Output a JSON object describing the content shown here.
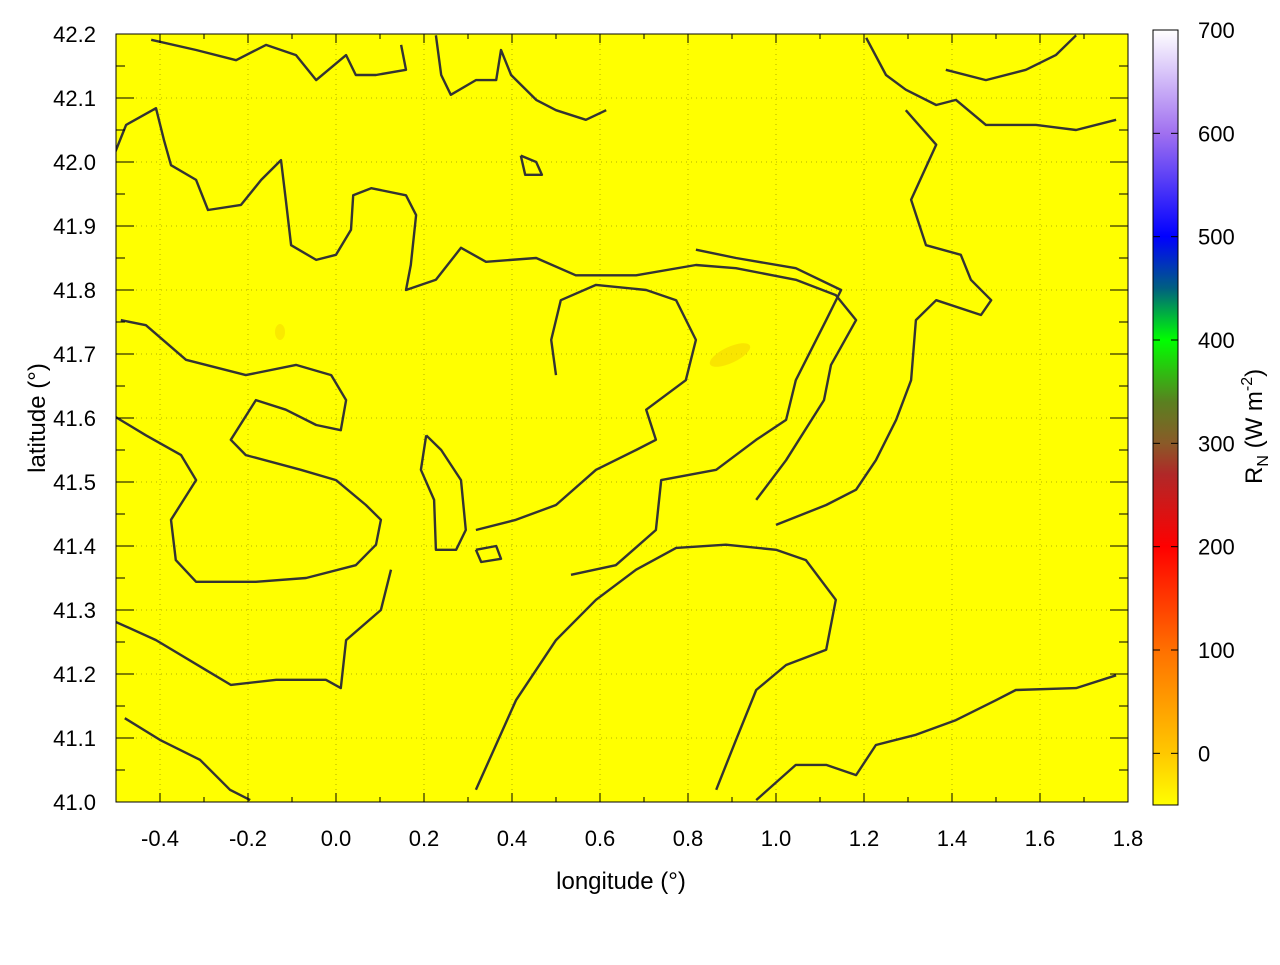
{
  "chart_data": {
    "type": "heatmap",
    "title": "",
    "xlabel": "longitude (°)",
    "ylabel": "latitude (°)",
    "xlim": [
      -0.5,
      1.8
    ],
    "ylim": [
      41.0,
      42.2
    ],
    "xticks": [
      -0.4,
      -0.2,
      0.0,
      0.2,
      0.4,
      0.6,
      0.8,
      1.0,
      1.2,
      1.4,
      1.6,
      1.8
    ],
    "xtick_labels": [
      "-0.4",
      "-0.2",
      "0.0",
      "0.2",
      "0.4",
      "0.6",
      "0.8",
      "1.0",
      "1.2",
      "1.4",
      "1.6",
      "1.8"
    ],
    "yticks": [
      41.0,
      41.1,
      41.2,
      41.3,
      41.4,
      41.5,
      41.6,
      41.7,
      41.8,
      41.9,
      42.0,
      42.1,
      42.2
    ],
    "ytick_labels": [
      "41.0",
      "41.1",
      "41.2",
      "41.3",
      "41.4",
      "41.5",
      "41.6",
      "41.7",
      "41.8",
      "41.9",
      "42.0",
      "42.1",
      "42.2"
    ],
    "grid": true,
    "field_color": "#ffff00",
    "field_value_approx": -50,
    "colorbar": {
      "label_main": "R",
      "label_sub": "N",
      "label_unit": " (W m",
      "label_sup": "-2",
      "label_close": ")",
      "range": [
        -50,
        700
      ],
      "ticks": [
        0,
        100,
        200,
        300,
        400,
        500,
        600,
        700
      ],
      "tick_labels": [
        "0",
        "100",
        "200",
        "300",
        "400",
        "500",
        "600",
        "700"
      ],
      "stops": [
        {
          "value": -50,
          "color": "#ffff00"
        },
        {
          "value": 0,
          "color": "#ffc800"
        },
        {
          "value": 100,
          "color": "#ff7000"
        },
        {
          "value": 200,
          "color": "#ff0000"
        },
        {
          "value": 270,
          "color": "#b02828"
        },
        {
          "value": 300,
          "color": "#8a5a28"
        },
        {
          "value": 340,
          "color": "#5a8020"
        },
        {
          "value": 400,
          "color": "#00ff00"
        },
        {
          "value": 450,
          "color": "#006080"
        },
        {
          "value": 500,
          "color": "#0000ff"
        },
        {
          "value": 600,
          "color": "#a070f0"
        },
        {
          "value": 700,
          "color": "#ffffff"
        }
      ]
    },
    "contour_color": "#333333",
    "contours": [
      [
        [
          -0.509,
          42.003
        ],
        [
          -0.477,
          42.058
        ],
        [
          -0.409,
          42.084
        ],
        [
          -0.391,
          42.034
        ],
        [
          -0.375,
          41.995
        ],
        [
          -0.318,
          41.972
        ],
        [
          -0.291,
          41.925
        ],
        [
          -0.216,
          41.933
        ],
        [
          -0.17,
          41.972
        ],
        [
          -0.125,
          42.003
        ],
        [
          -0.114,
          41.941
        ],
        [
          -0.102,
          41.87
        ],
        [
          -0.045,
          41.847
        ],
        [
          0.0,
          41.855
        ],
        [
          0.034,
          41.894
        ],
        [
          0.039,
          41.948
        ],
        [
          0.08,
          41.959
        ],
        [
          0.159,
          41.948
        ],
        [
          0.182,
          41.917
        ],
        [
          0.17,
          41.839
        ],
        [
          0.159,
          41.8
        ],
        [
          0.227,
          41.816
        ],
        [
          0.284,
          41.866
        ],
        [
          0.341,
          41.844
        ],
        [
          0.455,
          41.85
        ],
        [
          0.545,
          41.823
        ],
        [
          0.682,
          41.823
        ],
        [
          0.818,
          41.839
        ],
        [
          0.909,
          41.834
        ],
        [
          1.045,
          41.816
        ],
        [
          1.136,
          41.792
        ],
        [
          1.182,
          41.753
        ],
        [
          1.125,
          41.683
        ],
        [
          1.109,
          41.628
        ],
        [
          1.023,
          41.534
        ],
        [
          0.955,
          41.472
        ]
      ],
      [
        [
          -0.509,
          41.605
        ],
        [
          -0.432,
          41.573
        ],
        [
          -0.352,
          41.542
        ],
        [
          -0.318,
          41.503
        ],
        [
          -0.375,
          41.441
        ],
        [
          -0.364,
          41.378
        ],
        [
          -0.318,
          41.344
        ],
        [
          -0.182,
          41.344
        ],
        [
          -0.068,
          41.35
        ],
        [
          0.045,
          41.37
        ],
        [
          0.091,
          41.402
        ],
        [
          0.102,
          41.441
        ],
        [
          0.068,
          41.464
        ],
        [
          0.0,
          41.503
        ],
        [
          -0.08,
          41.519
        ],
        [
          -0.205,
          41.542
        ],
        [
          -0.239,
          41.566
        ],
        [
          -0.182,
          41.628
        ],
        [
          -0.114,
          41.613
        ],
        [
          -0.045,
          41.589
        ],
        [
          0.011,
          41.581
        ],
        [
          0.023,
          41.628
        ],
        [
          -0.011,
          41.667
        ],
        [
          -0.091,
          41.683
        ],
        [
          -0.205,
          41.667
        ],
        [
          -0.341,
          41.691
        ],
        [
          -0.432,
          41.745
        ],
        [
          -0.489,
          41.753
        ]
      ],
      [
        [
          0.205,
          41.573
        ],
        [
          0.239,
          41.55
        ],
        [
          0.284,
          41.503
        ],
        [
          0.295,
          41.425
        ],
        [
          0.273,
          41.394
        ],
        [
          0.227,
          41.394
        ],
        [
          0.223,
          41.472
        ],
        [
          0.193,
          41.519
        ],
        [
          0.205,
          41.573
        ]
      ],
      [
        [
          0.318,
          41.019
        ],
        [
          0.409,
          41.159
        ],
        [
          0.5,
          41.253
        ],
        [
          0.591,
          41.316
        ],
        [
          0.682,
          41.363
        ],
        [
          0.773,
          41.397
        ],
        [
          0.886,
          41.402
        ],
        [
          1.0,
          41.394
        ],
        [
          1.068,
          41.378
        ],
        [
          1.136,
          41.316
        ],
        [
          1.114,
          41.238
        ],
        [
          1.023,
          41.214
        ],
        [
          0.955,
          41.175
        ],
        [
          0.909,
          41.097
        ],
        [
          0.864,
          41.019
        ]
      ],
      [
        [
          0.534,
          41.355
        ],
        [
          0.636,
          41.37
        ],
        [
          0.727,
          41.425
        ],
        [
          0.739,
          41.503
        ],
        [
          0.864,
          41.519
        ],
        [
          0.955,
          41.566
        ],
        [
          1.023,
          41.597
        ],
        [
          1.045,
          41.659
        ],
        [
          1.114,
          41.753
        ],
        [
          1.148,
          41.8
        ],
        [
          1.045,
          41.834
        ],
        [
          0.909,
          41.85
        ],
        [
          0.818,
          41.863
        ]
      ],
      [
        [
          0.318,
          41.425
        ],
        [
          0.409,
          41.441
        ],
        [
          0.5,
          41.464
        ],
        [
          0.591,
          41.519
        ],
        [
          0.682,
          41.55
        ],
        [
          0.727,
          41.566
        ],
        [
          0.705,
          41.613
        ],
        [
          0.795,
          41.659
        ],
        [
          0.818,
          41.722
        ],
        [
          0.773,
          41.784
        ],
        [
          0.705,
          41.8
        ],
        [
          0.591,
          41.808
        ],
        [
          0.511,
          41.784
        ],
        [
          0.489,
          41.722
        ],
        [
          0.5,
          41.667
        ]
      ],
      [
        [
          1.0,
          41.433
        ],
        [
          1.114,
          41.464
        ],
        [
          1.182,
          41.488
        ],
        [
          1.227,
          41.534
        ],
        [
          1.273,
          41.597
        ],
        [
          1.307,
          41.659
        ],
        [
          1.318,
          41.753
        ],
        [
          1.364,
          41.784
        ],
        [
          1.466,
          41.761
        ],
        [
          1.489,
          41.784
        ],
        [
          1.443,
          41.816
        ],
        [
          1.42,
          41.855
        ],
        [
          1.341,
          41.87
        ],
        [
          1.307,
          41.941
        ],
        [
          1.364,
          42.027
        ],
        [
          1.295,
          42.081
        ]
      ],
      [
        [
          0.955,
          41.003
        ],
        [
          1.045,
          41.058
        ],
        [
          1.114,
          41.058
        ],
        [
          1.182,
          41.042
        ],
        [
          1.227,
          41.089
        ],
        [
          1.318,
          41.105
        ],
        [
          1.409,
          41.128
        ],
        [
          1.5,
          41.159
        ],
        [
          1.545,
          41.175
        ],
        [
          1.682,
          41.178
        ],
        [
          1.773,
          41.198
        ]
      ],
      [
        [
          1.205,
          42.194
        ],
        [
          1.25,
          42.136
        ],
        [
          1.295,
          42.113
        ],
        [
          1.364,
          42.089
        ],
        [
          1.409,
          42.097
        ],
        [
          1.477,
          42.058
        ],
        [
          1.591,
          42.058
        ],
        [
          1.682,
          42.05
        ],
        [
          1.773,
          42.066
        ]
      ],
      [
        [
          1.386,
          42.144
        ],
        [
          1.477,
          42.128
        ],
        [
          1.568,
          42.144
        ],
        [
          1.636,
          42.167
        ],
        [
          1.682,
          42.198
        ]
      ],
      [
        [
          -0.48,
          41.131
        ],
        [
          -0.4,
          41.097
        ],
        [
          -0.309,
          41.066
        ],
        [
          -0.241,
          41.019
        ],
        [
          -0.195,
          41.003
        ]
      ],
      [
        [
          -0.509,
          41.284
        ],
        [
          -0.409,
          41.253
        ],
        [
          -0.295,
          41.206
        ],
        [
          -0.239,
          41.183
        ],
        [
          -0.136,
          41.191
        ],
        [
          -0.023,
          41.191
        ],
        [
          0.011,
          41.178
        ],
        [
          0.023,
          41.253
        ],
        [
          0.102,
          41.3
        ],
        [
          0.125,
          41.363
        ]
      ],
      [
        [
          -0.42,
          42.191
        ],
        [
          -0.318,
          42.175
        ],
        [
          -0.227,
          42.159
        ],
        [
          -0.159,
          42.183
        ],
        [
          -0.091,
          42.167
        ],
        [
          -0.045,
          42.128
        ],
        [
          0.023,
          42.167
        ],
        [
          0.045,
          42.136
        ],
        [
          0.091,
          42.136
        ],
        [
          0.159,
          42.144
        ],
        [
          0.148,
          42.183
        ]
      ],
      [
        [
          0.227,
          42.198
        ],
        [
          0.239,
          42.136
        ],
        [
          0.261,
          42.105
        ],
        [
          0.318,
          42.128
        ],
        [
          0.364,
          42.128
        ],
        [
          0.375,
          42.175
        ],
        [
          0.398,
          42.136
        ],
        [
          0.455,
          42.097
        ],
        [
          0.5,
          42.081
        ],
        [
          0.568,
          42.066
        ],
        [
          0.614,
          42.081
        ]
      ],
      [
        [
          0.42,
          42.01
        ],
        [
          0.455,
          42.0
        ],
        [
          0.468,
          41.98
        ],
        [
          0.43,
          41.98
        ],
        [
          0.42,
          42.01
        ]
      ],
      [
        [
          0.318,
          41.394
        ],
        [
          0.364,
          41.4
        ],
        [
          0.375,
          41.38
        ],
        [
          0.33,
          41.375
        ],
        [
          0.318,
          41.394
        ]
      ]
    ]
  }
}
